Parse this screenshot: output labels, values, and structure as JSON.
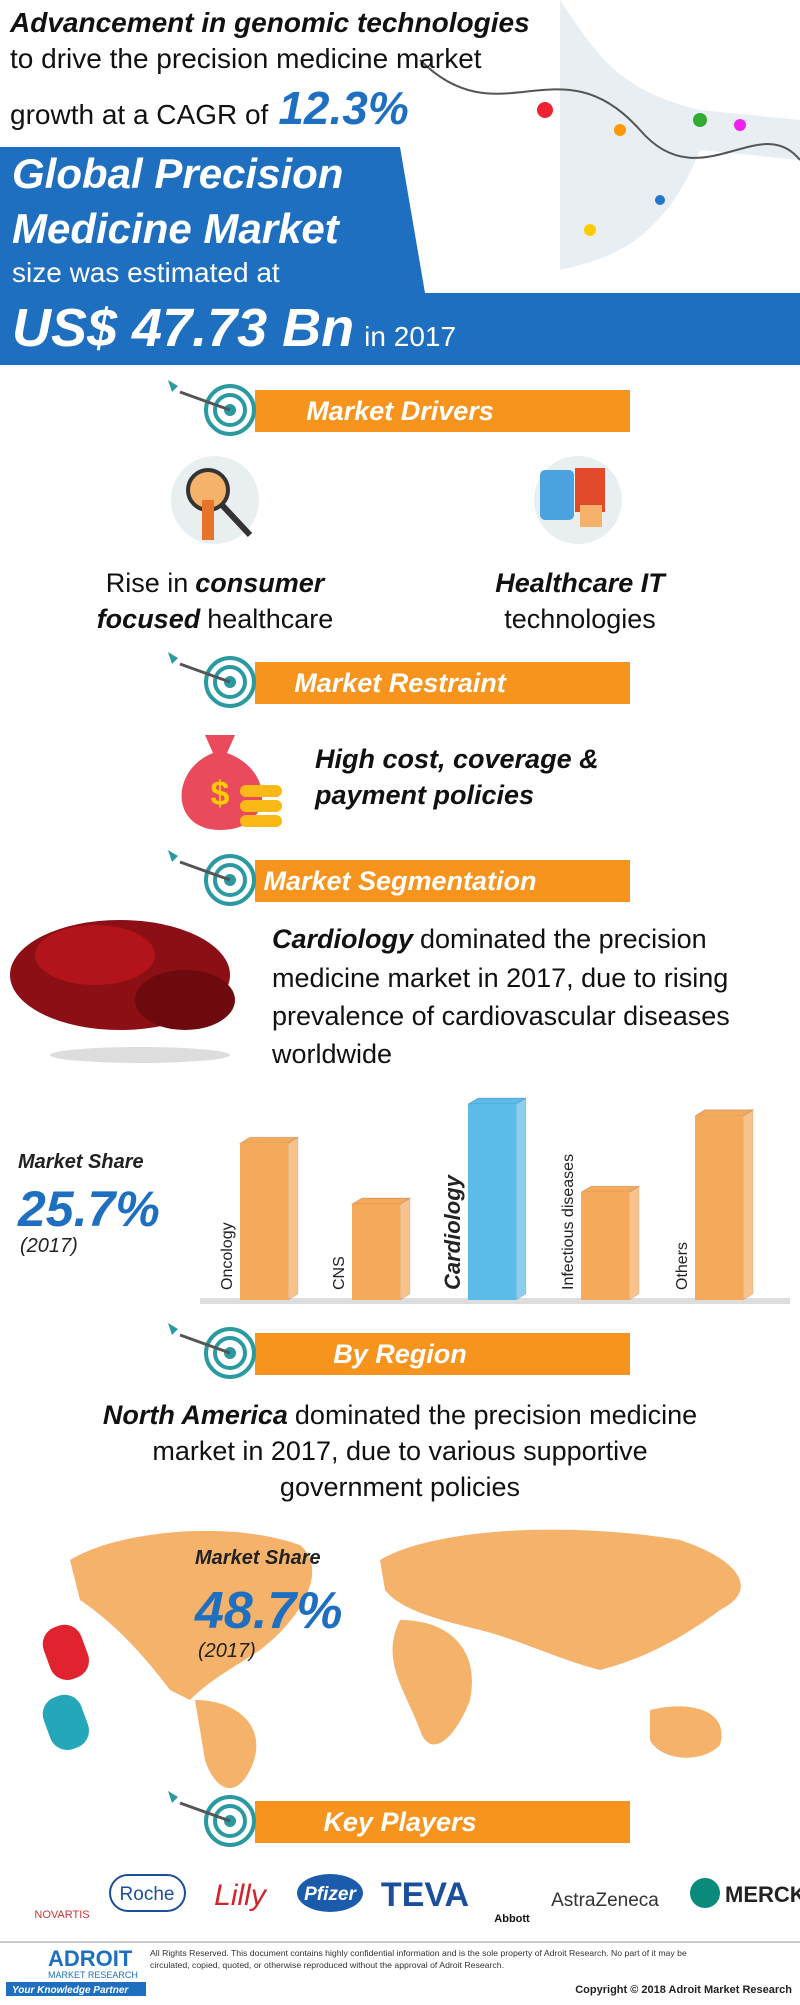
{
  "header": {
    "line1": "Advancement in genomic technologies",
    "line2": "to drive the precision medicine market",
    "line3": "growth at a CAGR of",
    "cagr": "12.3%",
    "title1": "Global Precision",
    "title2": "Medicine Market",
    "subtitle": "size was estimated at",
    "size": "US$ 47.73 Bn",
    "year": "in 2017"
  },
  "drivers": {
    "heading": "Market Drivers",
    "item1": {
      "line1": [
        "Rise in",
        "consumer"
      ],
      "line2": [
        "focused",
        "healthcare"
      ]
    },
    "item2": {
      "line1": "Healthcare IT",
      "line2": "technologies"
    }
  },
  "restraint": {
    "heading": "Market Restraint",
    "lines": [
      "High cost, coverage &",
      "payment policies"
    ]
  },
  "segmentation": {
    "heading": "Market Segmentation",
    "bold": "Cardiology",
    "lines": [
      "dominated the precision",
      "medicine market in 2017, due to rising",
      "prevalence of cardiovascular diseases",
      "worldwide"
    ],
    "share_label": "Market Share",
    "share": "25.7%",
    "share_year": "(2017)",
    "chart": {
      "type": "bar",
      "categories": [
        "Oncology",
        "CNS",
        "Cardiology",
        "Infectious diseases",
        "Others"
      ],
      "values": [
        80,
        49,
        100,
        55,
        94
      ],
      "colors": [
        "#f5a95b",
        "#f5a95b",
        "#5bbce9",
        "#f5a95b",
        "#f5a95b"
      ]
    }
  },
  "region": {
    "heading": "By Region",
    "bold": "North America",
    "lines": [
      "dominated the precision medicine",
      "market in 2017, due to various supportive",
      "government policies"
    ],
    "share_label": "Market Share",
    "share": "48.7%",
    "share_year": "(2017)"
  },
  "players": {
    "heading": "Key Players",
    "logos": [
      "NOVARTIS",
      "Roche",
      "Lilly",
      "Pfizer",
      "TEVA",
      "Abbott",
      "AstraZeneca",
      "MERCK"
    ]
  },
  "footer": {
    "brand": "ADROIT",
    "brand_sub": "MARKET RESEARCH",
    "tagline": "Your Knowledge Partner",
    "rights": [
      "All Rights Reserved. This document contains highly confidential information and is the sole property of Adroit Research. No part of it may be",
      "circulated, copied, quoted, or otherwise reproduced without the approval of Adroit Research."
    ],
    "copyright": "Copyright © 2018 Adroit Market Research"
  }
}
